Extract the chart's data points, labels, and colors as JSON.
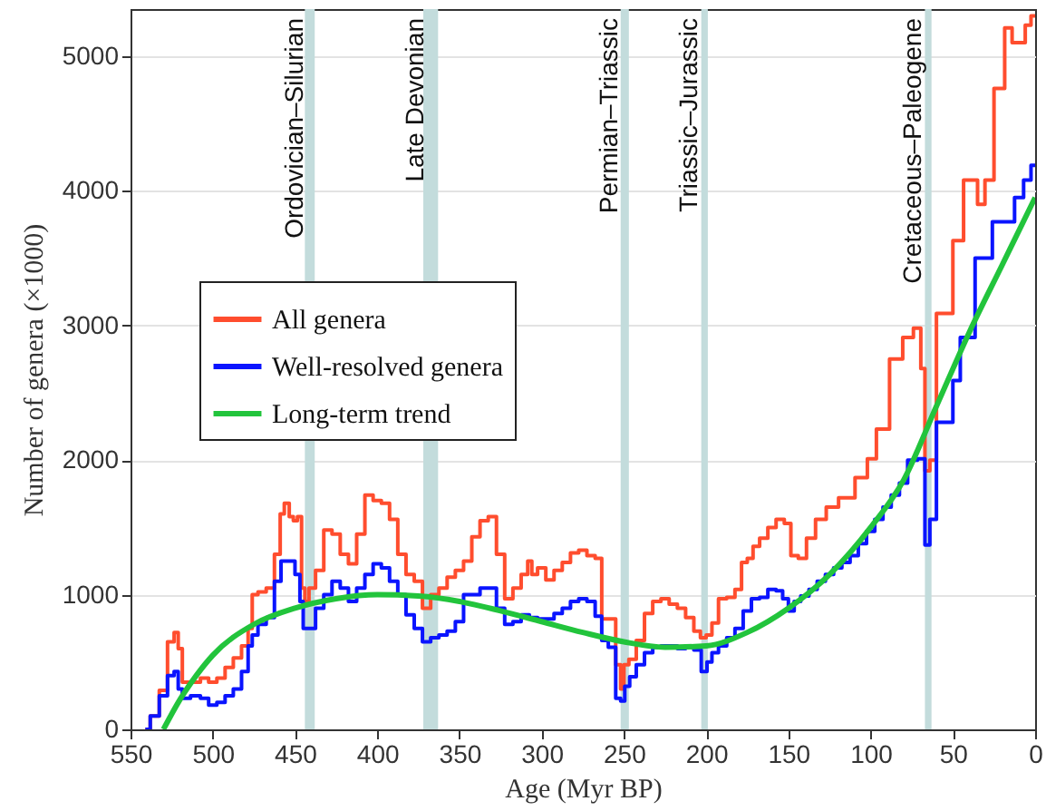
{
  "chart_data": {
    "type": "step",
    "xlabel": "Age (Myr BP)",
    "ylabel": "Number of genera (×1000)",
    "xlim": [
      550,
      0
    ],
    "ylim": [
      0,
      5350
    ],
    "xticks": [
      550,
      500,
      450,
      400,
      350,
      300,
      250,
      200,
      150,
      100,
      50,
      0
    ],
    "yticks": [
      0,
      1000,
      2000,
      3000,
      4000,
      5000
    ],
    "grid": "y",
    "legend": "left",
    "bands": [
      {
        "axis": "x",
        "from": 444,
        "to": 438,
        "label": "Ordovician–Silurian",
        "color": "#c3dcdc"
      },
      {
        "axis": "x",
        "from": 372,
        "to": 363,
        "label": "Late Devonian",
        "color": "#c3dcdc"
      },
      {
        "axis": "x",
        "from": 252,
        "to": 247,
        "label": "Permian–Triassic",
        "color": "#c3dcdc"
      },
      {
        "axis": "x",
        "from": 203,
        "to": 199,
        "label": "Triassic–Jurassic",
        "color": "#c3dcdc"
      },
      {
        "axis": "x",
        "from": 67,
        "to": 63,
        "label": "Cretaceous–Paleogene",
        "color": "#c3dcdc"
      }
    ],
    "series": [
      {
        "name": "All genera",
        "color": "#ff4d2e",
        "x": [
          541,
          535,
          530,
          525,
          522,
          520,
          517,
          510,
          505,
          500,
          495,
          490,
          485,
          480,
          477,
          475,
          470,
          465,
          460,
          458,
          455,
          452,
          450,
          447,
          445,
          443,
          440,
          435,
          430,
          425,
          420,
          415,
          410,
          405,
          400,
          395,
          390,
          385,
          380,
          375,
          370,
          365,
          360,
          355,
          350,
          345,
          340,
          335,
          330,
          325,
          320,
          315,
          310,
          307,
          305,
          300,
          295,
          290,
          285,
          280,
          275,
          270,
          265,
          262,
          257,
          253,
          251,
          249,
          245,
          240,
          235,
          230,
          225,
          220,
          215,
          210,
          205,
          202,
          198,
          195,
          190,
          185,
          180,
          177,
          173,
          170,
          165,
          160,
          155,
          150,
          147,
          141,
          137,
          130,
          124,
          115,
          104,
          100,
          93,
          84,
          77,
          71,
          68,
          66,
          62,
          58,
          51,
          49,
          38,
          32,
          29,
          21,
          16,
          12,
          7,
          5,
          0
        ],
        "values": [
          0,
          100,
          290,
          650,
          720,
          600,
          350,
          350,
          380,
          350,
          380,
          460,
          530,
          620,
          750,
          1000,
          1020,
          1050,
          1300,
          1600,
          1680,
          1580,
          1550,
          1580,
          1050,
          950,
          1050,
          1180,
          1480,
          1450,
          1300,
          1230,
          1450,
          1740,
          1700,
          1680,
          1560,
          1300,
          1150,
          1100,
          900,
          1000,
          1050,
          1130,
          1180,
          1250,
          1430,
          1550,
          1580,
          1300,
          970,
          1050,
          1150,
          1250,
          1150,
          1200,
          1110,
          1180,
          1240,
          1310,
          1330,
          1290,
          1270,
          820,
          820,
          480,
          300,
          480,
          520,
          660,
          860,
          950,
          970,
          930,
          900,
          830,
          730,
          680,
          700,
          790,
          970,
          980,
          1040,
          1240,
          1270,
          1360,
          1420,
          1500,
          1560,
          1530,
          1290,
          1270,
          1420,
          1560,
          1650,
          1720,
          1870,
          2010,
          2230,
          2750,
          2910,
          2980,
          2680,
          1920,
          2000,
          3090,
          3090,
          3630,
          4080,
          3900,
          4080,
          4760,
          5210,
          5100,
          5100,
          5230,
          5300
        ]
      },
      {
        "name": "Well-resolved genera",
        "color": "#0a14ff",
        "x": [
          541,
          535,
          530,
          525,
          522,
          520,
          517,
          510,
          505,
          500,
          495,
          490,
          485,
          480,
          477,
          475,
          470,
          465,
          460,
          457,
          452,
          448,
          446,
          444,
          440,
          435,
          430,
          425,
          420,
          415,
          410,
          405,
          400,
          395,
          390,
          385,
          380,
          375,
          370,
          365,
          360,
          355,
          350,
          345,
          340,
          335,
          330,
          325,
          320,
          315,
          310,
          305,
          300,
          295,
          290,
          285,
          280,
          275,
          270,
          265,
          262,
          257,
          253,
          251,
          248,
          245,
          240,
          235,
          230,
          225,
          220,
          215,
          210,
          205,
          201,
          198,
          195,
          190,
          185,
          180,
          175,
          170,
          165,
          160,
          155,
          152,
          148,
          145,
          140,
          135,
          130,
          125,
          120,
          115,
          110,
          105,
          100,
          95,
          90,
          85,
          80,
          75,
          68,
          66,
          62,
          58,
          51,
          49,
          42,
          31,
          21,
          16,
          9,
          5,
          0
        ],
        "values": [
          0,
          100,
          250,
          400,
          430,
          300,
          230,
          250,
          230,
          180,
          200,
          250,
          300,
          430,
          620,
          700,
          780,
          830,
          1100,
          1250,
          1250,
          1150,
          950,
          750,
          750,
          900,
          1000,
          1100,
          1050,
          950,
          1050,
          1150,
          1230,
          1200,
          1100,
          1000,
          850,
          750,
          650,
          680,
          700,
          730,
          800,
          1000,
          1000,
          1050,
          1050,
          900,
          780,
          800,
          850,
          830,
          820,
          820,
          860,
          900,
          950,
          970,
          950,
          840,
          660,
          610,
          230,
          210,
          320,
          390,
          480,
          570,
          610,
          620,
          620,
          600,
          610,
          590,
          430,
          500,
          570,
          620,
          680,
          750,
          880,
          970,
          980,
          1040,
          1030,
          970,
          880,
          950,
          990,
          1040,
          1100,
          1150,
          1200,
          1240,
          1290,
          1380,
          1470,
          1560,
          1650,
          1740,
          1830,
          2000,
          2010,
          1370,
          1560,
          2280,
          2280,
          2590,
          2910,
          3500,
          3770,
          3770,
          3950,
          4080,
          4190
        ]
      },
      {
        "name": "Long-term trend",
        "color": "#22c43c",
        "type": "line",
        "x": [
          530,
          520,
          510,
          500,
          475,
          450,
          425,
          400,
          375,
          350,
          325,
          300,
          275,
          250,
          225,
          200,
          175,
          150,
          125,
          100,
          80,
          60,
          40,
          20,
          0
        ],
        "values": [
          0,
          220,
          400,
          550,
          780,
          900,
          970,
          1000,
          990,
          950,
          880,
          800,
          720,
          650,
          610,
          620,
          720,
          900,
          1150,
          1500,
          1850,
          2400,
          2950,
          3450,
          3950
        ]
      }
    ]
  }
}
